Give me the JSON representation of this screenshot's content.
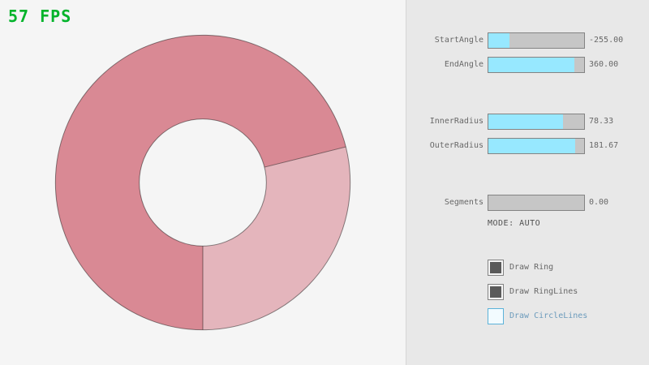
{
  "fps": {
    "label": "57 FPS"
  },
  "panel": {
    "sliders": [
      {
        "name": "StartAngle",
        "value": "-255.00",
        "fill_pct": 22
      },
      {
        "name": "EndAngle",
        "value": "360.00",
        "fill_pct": 90
      },
      {
        "name": "InnerRadius",
        "value": "78.33",
        "fill_pct": 78
      },
      {
        "name": "OuterRadius",
        "value": "181.67",
        "fill_pct": 91
      },
      {
        "name": "Segments",
        "value": "0.00",
        "fill_pct": 0
      }
    ],
    "mode_text": "MODE: AUTO",
    "checkboxes": [
      {
        "label": "Draw Ring",
        "checked": true,
        "focused": false
      },
      {
        "label": "Draw RingLines",
        "checked": true,
        "focused": false
      },
      {
        "label": "Draw CircleLines",
        "checked": false,
        "focused": true
      }
    ]
  },
  "colors": {
    "fps-green": "#00b32a",
    "ring-dark": "#d98994",
    "ring-light": "#e4b5bc",
    "slider-fill": "#97e8ff",
    "slider-track": "#c6c6c6",
    "slider-border": "#838383",
    "panel-bg": "#e8e8e8",
    "page-bg": "#f5f5f5",
    "text-gray": "#686868",
    "focus-text": "#6c9bbc",
    "focus-border": "#5bb2d9"
  }
}
